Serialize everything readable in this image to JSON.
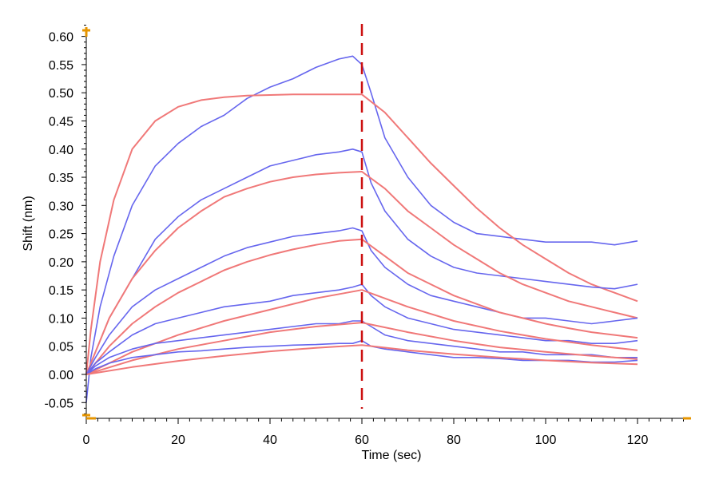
{
  "chart_data": {
    "type": "line",
    "title": "",
    "xlabel": "Time (sec)",
    "ylabel": "Shift (nm)",
    "xlim": [
      0,
      130
    ],
    "ylim": [
      -0.07,
      0.62
    ],
    "x_ticks": [
      "0",
      "20",
      "40",
      "60",
      "80",
      "100",
      "120"
    ],
    "y_ticks": [
      "-0.05",
      "0.00",
      "0.05",
      "0.10",
      "0.15",
      "0.20",
      "0.25",
      "0.30",
      "0.35",
      "0.40",
      "0.45",
      "0.50",
      "0.55",
      "0.60"
    ],
    "grid": false,
    "legend": "none",
    "colors": {
      "measured": "#6666ee",
      "fit": "#f07878",
      "marker": "#cc1111",
      "axis_accent": "#e69500"
    },
    "association_end_x": 60,
    "series": [
      {
        "kind": "measured",
        "x": [
          0,
          1,
          3,
          6,
          10,
          15,
          20,
          25,
          30,
          35,
          40,
          45,
          50,
          55,
          58,
          60,
          62,
          65,
          70,
          75,
          80,
          85,
          90,
          95,
          100,
          105,
          110,
          115,
          120
        ],
        "y": [
          -0.05,
          0.03,
          0.12,
          0.21,
          0.3,
          0.37,
          0.41,
          0.44,
          0.46,
          0.49,
          0.51,
          0.525,
          0.545,
          0.56,
          0.565,
          0.55,
          0.5,
          0.42,
          0.35,
          0.3,
          0.27,
          0.25,
          0.245,
          0.24,
          0.235,
          0.235,
          0.235,
          0.23,
          0.237
        ]
      },
      {
        "kind": "fit",
        "x": [
          0,
          1,
          3,
          6,
          10,
          15,
          20,
          25,
          30,
          35,
          40,
          45,
          50,
          55,
          60,
          65,
          70,
          75,
          80,
          85,
          90,
          95,
          100,
          105,
          110,
          115,
          120
        ],
        "y": [
          0,
          0.08,
          0.2,
          0.31,
          0.4,
          0.45,
          0.475,
          0.487,
          0.492,
          0.495,
          0.496,
          0.497,
          0.497,
          0.497,
          0.497,
          0.465,
          0.42,
          0.375,
          0.335,
          0.295,
          0.26,
          0.23,
          0.205,
          0.18,
          0.16,
          0.145,
          0.13
        ]
      },
      {
        "kind": "measured",
        "x": [
          0,
          2,
          5,
          10,
          15,
          20,
          25,
          30,
          35,
          40,
          45,
          50,
          55,
          58,
          60,
          62,
          65,
          70,
          75,
          80,
          85,
          90,
          95,
          100,
          105,
          110,
          115,
          120
        ],
        "y": [
          0,
          0.04,
          0.1,
          0.17,
          0.24,
          0.28,
          0.31,
          0.33,
          0.35,
          0.37,
          0.38,
          0.39,
          0.395,
          0.4,
          0.395,
          0.34,
          0.29,
          0.24,
          0.21,
          0.19,
          0.18,
          0.175,
          0.17,
          0.165,
          0.16,
          0.155,
          0.152,
          0.16
        ]
      },
      {
        "kind": "fit",
        "x": [
          0,
          5,
          10,
          15,
          20,
          25,
          30,
          35,
          40,
          45,
          50,
          55,
          60,
          65,
          70,
          75,
          80,
          85,
          90,
          95,
          100,
          105,
          110,
          115,
          120
        ],
        "y": [
          0,
          0.1,
          0.17,
          0.22,
          0.26,
          0.29,
          0.315,
          0.33,
          0.342,
          0.35,
          0.355,
          0.358,
          0.36,
          0.33,
          0.29,
          0.26,
          0.23,
          0.205,
          0.18,
          0.16,
          0.145,
          0.13,
          0.12,
          0.11,
          0.1
        ]
      },
      {
        "kind": "measured",
        "x": [
          0,
          2,
          5,
          10,
          15,
          20,
          25,
          30,
          35,
          40,
          45,
          50,
          55,
          58,
          60,
          62,
          65,
          70,
          75,
          80,
          85,
          90,
          95,
          100,
          105,
          110,
          115,
          120
        ],
        "y": [
          0,
          0.03,
          0.07,
          0.12,
          0.15,
          0.17,
          0.19,
          0.21,
          0.225,
          0.235,
          0.245,
          0.25,
          0.255,
          0.26,
          0.255,
          0.22,
          0.19,
          0.16,
          0.14,
          0.13,
          0.12,
          0.11,
          0.1,
          0.1,
          0.095,
          0.09,
          0.095,
          0.1
        ]
      },
      {
        "kind": "fit",
        "x": [
          0,
          5,
          10,
          15,
          20,
          25,
          30,
          35,
          40,
          45,
          50,
          55,
          60,
          65,
          70,
          75,
          80,
          85,
          90,
          95,
          100,
          105,
          110,
          115,
          120
        ],
        "y": [
          0,
          0.05,
          0.09,
          0.12,
          0.145,
          0.165,
          0.185,
          0.2,
          0.212,
          0.222,
          0.23,
          0.237,
          0.24,
          0.21,
          0.18,
          0.16,
          0.14,
          0.125,
          0.11,
          0.1,
          0.09,
          0.082,
          0.075,
          0.07,
          0.065
        ]
      },
      {
        "kind": "measured",
        "x": [
          0,
          2,
          5,
          10,
          15,
          20,
          25,
          30,
          35,
          40,
          45,
          50,
          55,
          58,
          60,
          62,
          65,
          70,
          75,
          80,
          85,
          90,
          95,
          100,
          105,
          110,
          115,
          120
        ],
        "y": [
          0,
          0.02,
          0.04,
          0.07,
          0.09,
          0.1,
          0.11,
          0.12,
          0.125,
          0.13,
          0.14,
          0.145,
          0.15,
          0.155,
          0.16,
          0.14,
          0.12,
          0.1,
          0.09,
          0.08,
          0.075,
          0.07,
          0.065,
          0.06,
          0.06,
          0.055,
          0.055,
          0.06
        ]
      },
      {
        "kind": "fit",
        "x": [
          0,
          10,
          20,
          30,
          40,
          50,
          60,
          70,
          80,
          90,
          100,
          110,
          120
        ],
        "y": [
          0,
          0.04,
          0.07,
          0.095,
          0.115,
          0.135,
          0.15,
          0.12,
          0.095,
          0.077,
          0.063,
          0.052,
          0.043
        ]
      },
      {
        "kind": "measured",
        "x": [
          0,
          2,
          5,
          10,
          15,
          20,
          25,
          30,
          35,
          40,
          45,
          50,
          55,
          58,
          60,
          62,
          65,
          70,
          75,
          80,
          85,
          90,
          95,
          100,
          105,
          110,
          115,
          120
        ],
        "y": [
          0,
          0.015,
          0.03,
          0.045,
          0.055,
          0.06,
          0.065,
          0.07,
          0.075,
          0.08,
          0.085,
          0.09,
          0.09,
          0.095,
          0.095,
          0.085,
          0.07,
          0.06,
          0.055,
          0.05,
          0.045,
          0.04,
          0.04,
          0.035,
          0.035,
          0.035,
          0.03,
          0.03
        ]
      },
      {
        "kind": "fit",
        "x": [
          0,
          10,
          20,
          30,
          40,
          50,
          60,
          70,
          80,
          90,
          100,
          110,
          120
        ],
        "y": [
          0,
          0.025,
          0.045,
          0.06,
          0.075,
          0.085,
          0.092,
          0.075,
          0.06,
          0.048,
          0.04,
          0.033,
          0.027
        ]
      },
      {
        "kind": "measured",
        "x": [
          0,
          2,
          5,
          10,
          15,
          20,
          25,
          30,
          35,
          40,
          45,
          50,
          55,
          58,
          60,
          62,
          65,
          70,
          75,
          80,
          85,
          90,
          95,
          100,
          105,
          110,
          115,
          120
        ],
        "y": [
          0,
          0.01,
          0.02,
          0.03,
          0.035,
          0.04,
          0.042,
          0.045,
          0.048,
          0.05,
          0.052,
          0.053,
          0.055,
          0.055,
          0.06,
          0.05,
          0.045,
          0.04,
          0.035,
          0.03,
          0.03,
          0.028,
          0.025,
          0.025,
          0.025,
          0.022,
          0.022,
          0.025
        ]
      },
      {
        "kind": "fit",
        "x": [
          0,
          10,
          20,
          30,
          40,
          50,
          60,
          70,
          80,
          90,
          100,
          110,
          120
        ],
        "y": [
          0,
          0.013,
          0.024,
          0.033,
          0.041,
          0.047,
          0.052,
          0.043,
          0.036,
          0.03,
          0.025,
          0.021,
          0.018
        ]
      }
    ]
  }
}
